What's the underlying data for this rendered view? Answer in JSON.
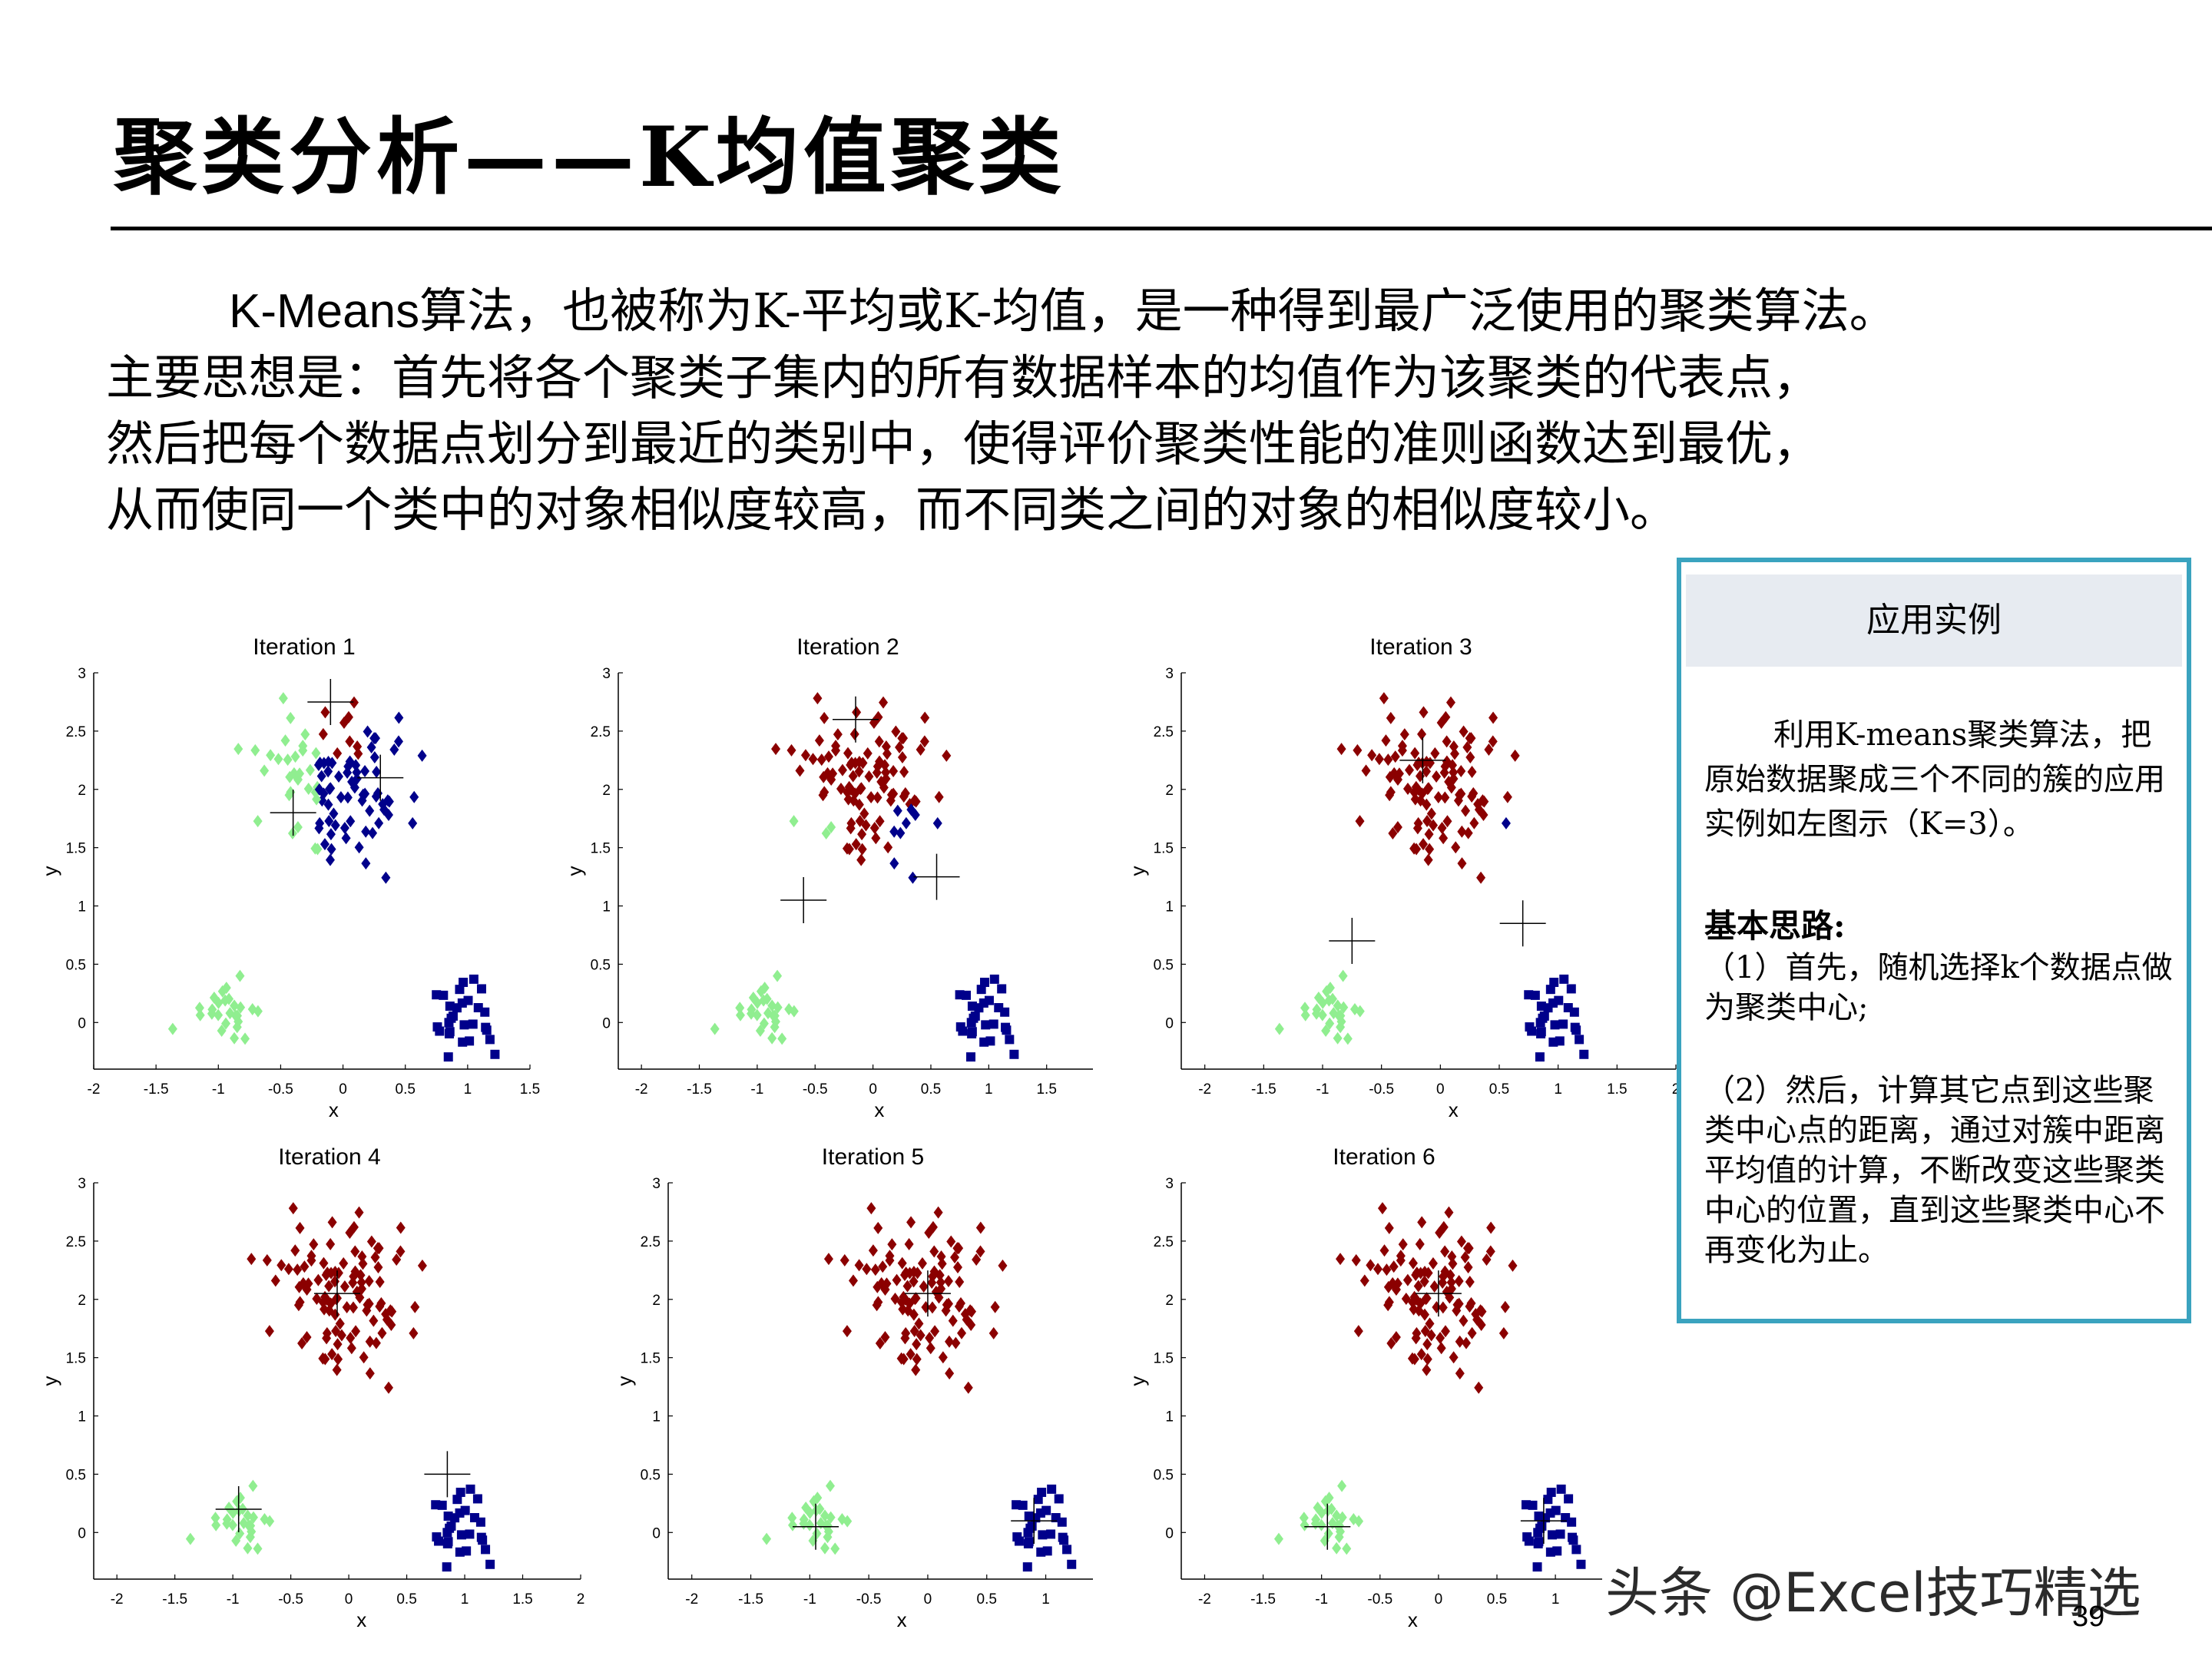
{
  "title": "聚类分析——K均值聚类",
  "intro": {
    "line1_latin": "K-Means",
    "line1_rest": "算法，也被称为K-平均或K-均值，是一种得到最广泛使用的聚类算法。",
    "line2": "主要思想是：首先将各个聚类子集内的所有数据样本的均值作为该聚类的代表点，",
    "line3": "然后把每个数据点划分到最近的类别中，使得评价聚类性能的准则函数达到最优，",
    "line4": "从而使同一个类中的对象相似度较高，而不同类之间的对象的相似度较小。"
  },
  "sidebox": {
    "heading": "应用实例",
    "description": "利用K-means聚类算法，把原始数据聚成三个不同的簇的应用实例如左图示（K=3）。",
    "subheading": "基本思路:",
    "step1": "（1）首先，随机选择k个数据点做为聚类中心;",
    "step2": "（2）然后，计算其它点到这些聚类中心点的距离，通过对簇中距离平均值的计算，不断改变这些聚类中心的位置，直到这些聚类中心不再变化为止。"
  },
  "watermark": "头条 @Excel技巧精选",
  "page_number": "39",
  "colors": {
    "cluster_red": "#8b0000",
    "cluster_green": "#90ee90",
    "cluster_blue": "#00008b",
    "box_border": "#3aa3bf",
    "box_header": "#e7ebf1"
  },
  "chart_data": [
    {
      "type": "scatter",
      "title": "Iteration 1",
      "xlabel": "x",
      "ylabel": "y",
      "xlim": [
        -2,
        1.5
      ],
      "ylim": [
        -0.4,
        3
      ],
      "xticks": [
        "-2",
        "-1.5",
        "-1",
        "-0.5",
        "0",
        "0.5",
        "1",
        "1.5"
      ],
      "yticks": [
        "3",
        "2.5",
        "2",
        "1.5",
        "1",
        "0.5",
        "0"
      ],
      "centroids": [
        [
          -0.1,
          2.75
        ],
        [
          -0.4,
          1.8
        ],
        [
          0.3,
          2.1
        ]
      ]
    },
    {
      "type": "scatter",
      "title": "Iteration 2",
      "xlabel": "x",
      "ylabel": "y",
      "xlim": [
        -2.2,
        1.9
      ],
      "ylim": [
        -0.4,
        3
      ],
      "xticks": [
        "-2",
        "-1.5",
        "-1",
        "-0.5",
        "0",
        "0.5",
        "1",
        "1.5"
      ],
      "yticks": [
        "3",
        "2.5",
        "2",
        "1.5",
        "1",
        "0.5",
        "0"
      ],
      "centroids": [
        [
          -0.15,
          2.6
        ],
        [
          -0.6,
          1.05
        ],
        [
          0.55,
          1.25
        ]
      ]
    },
    {
      "type": "scatter",
      "title": "Iteration 3",
      "xlabel": "x",
      "ylabel": "y",
      "xlim": [
        -2.2,
        2
      ],
      "ylim": [
        -0.4,
        3
      ],
      "xticks": [
        "-2",
        "-1.5",
        "-1",
        "-0.5",
        "0",
        "0.5",
        "1",
        "1.5",
        "2"
      ],
      "yticks": [
        "3",
        "2.5",
        "2",
        "1.5",
        "1",
        "0.5",
        "0"
      ],
      "centroids": [
        [
          -0.15,
          2.25
        ],
        [
          -0.75,
          0.7
        ],
        [
          0.7,
          0.85
        ]
      ]
    },
    {
      "type": "scatter",
      "title": "Iteration 4",
      "xlabel": "x",
      "ylabel": "y",
      "xlim": [
        -2.2,
        2
      ],
      "ylim": [
        -0.4,
        3
      ],
      "xticks": [
        "-2",
        "-1.5",
        "-1",
        "-0.5",
        "0",
        "0.5",
        "1",
        "1.5",
        "2"
      ],
      "yticks": [
        "3",
        "2.5",
        "2",
        "1.5",
        "1",
        "0.5",
        "0"
      ],
      "centroids": [
        [
          -0.1,
          2.05
        ],
        [
          -0.95,
          0.2
        ],
        [
          0.85,
          0.5
        ]
      ]
    },
    {
      "type": "scatter",
      "title": "Iteration 5",
      "xlabel": "x",
      "ylabel": "y",
      "xlim": [
        -2.2,
        1.4
      ],
      "ylim": [
        -0.4,
        3
      ],
      "xticks": [
        "-2",
        "-1.5",
        "-1",
        "-0.5",
        "0",
        "0.5",
        "1"
      ],
      "yticks": [
        "3",
        "2.5",
        "2",
        "1.5",
        "1",
        "0.5",
        "0"
      ],
      "centroids": [
        [
          0,
          2.05
        ],
        [
          -0.95,
          0.05
        ],
        [
          0.9,
          0.1
        ]
      ]
    },
    {
      "type": "scatter",
      "title": "Iteration 6",
      "xlabel": "x",
      "ylabel": "y",
      "xlim": [
        -2.2,
        1.4
      ],
      "ylim": [
        -0.4,
        3
      ],
      "xticks": [
        "-2",
        "-1.5",
        "-1",
        "-0.5",
        "0",
        "0.5",
        "1"
      ],
      "yticks": [
        "3",
        "2.5",
        "2",
        "1.5",
        "1",
        "0.5",
        "0"
      ],
      "centroids": [
        [
          0,
          2.05
        ],
        [
          -0.95,
          0.05
        ],
        [
          0.9,
          0.1
        ]
      ]
    }
  ]
}
